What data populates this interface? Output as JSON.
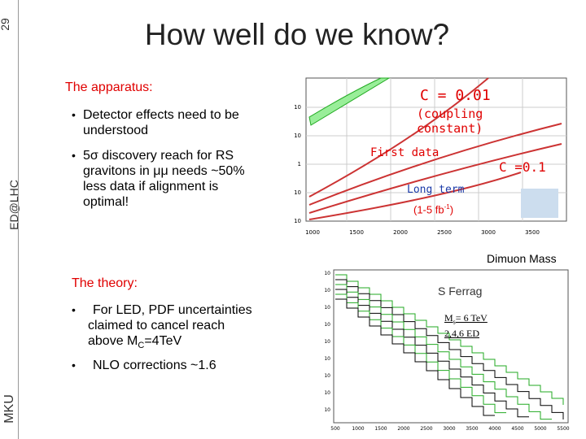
{
  "page_number": "29",
  "side_labels": {
    "group": "ED@LHC",
    "author": "MKU"
  },
  "title": "How well do we know?",
  "apparatus": {
    "heading": "The apparatus:",
    "bullets": [
      [
        "Detector effects need to be",
        "understood"
      ],
      [
        "5σ discovery reach for RS",
        "gravitons in μμ needs ~50%",
        "less data if alignment is",
        "optimal!"
      ]
    ]
  },
  "theory": {
    "heading": "The theory:",
    "bullets": [
      {
        "lines": [
          "For LED, PDF uncertainties",
          "claimed to cancel reach"
        ],
        "last": [
          "above M",
          "C",
          "=4TeV"
        ]
      },
      {
        "lines": [
          "NLO corrections ~1.6"
        ]
      }
    ]
  },
  "plot_top": {
    "y_ticks": [
      "10",
      "10",
      "1",
      "10",
      "10"
    ],
    "x_ticks": [
      "1000",
      "1500",
      "2000",
      "2500",
      "3000",
      "3500"
    ],
    "labels": {
      "c1": "C = 0.01",
      "coupling": [
        "(coupling",
        "constant)"
      ],
      "first": "First data",
      "c2": "C =0.1",
      "long": "Long term",
      "lumi": [
        "(1-5 fb",
        "-1",
        ")"
      ]
    },
    "caption": "Dimuon Mass"
  },
  "plot_bottom": {
    "author": "S Ferrag",
    "y_ticks": [
      "10",
      "10",
      "10",
      "10",
      "10",
      "10",
      "10",
      "10",
      "10"
    ],
    "x_ticks": [
      "500",
      "1000",
      "1500",
      "2000",
      "2500",
      "3000",
      "3500",
      "4000",
      "4500",
      "5000",
      "5500"
    ],
    "note": [
      "M",
      "s",
      "= 6 TeV",
      "2,4,6 ED"
    ]
  }
}
